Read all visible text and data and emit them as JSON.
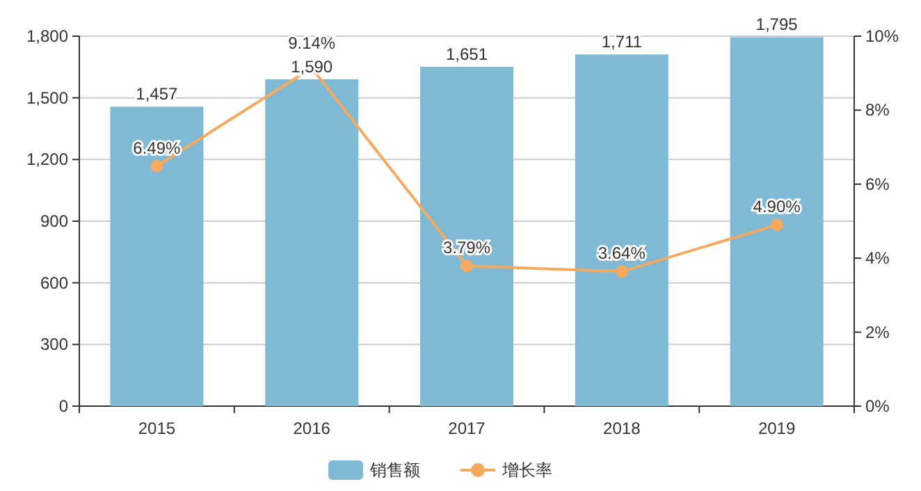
{
  "chart_data": {
    "type": "bar",
    "categories": [
      "2015",
      "2016",
      "2017",
      "2018",
      "2019"
    ],
    "series": [
      {
        "name": "销售额",
        "color": "#7fb9d4",
        "values": [
          1457,
          1590,
          1651,
          1711,
          1795
        ],
        "value_labels": [
          "1,457",
          "1,590",
          "1,651",
          "1,711",
          "1,795"
        ]
      },
      {
        "name": "增长率",
        "type": "line",
        "axis": "y2",
        "color": "#f5aa5f",
        "marker": "circle",
        "values": [
          6.49,
          9.14,
          3.79,
          3.64,
          4.9
        ],
        "value_labels": [
          "6.49%",
          "9.14%",
          "3.79%",
          "3.64%",
          "4.90%"
        ]
      }
    ],
    "ylim": [
      0,
      1800
    ],
    "yticks": [
      0,
      300,
      600,
      900,
      {
        "value": 1200,
        "label": "1,200"
      },
      {
        "value": 1500,
        "label": "1,500"
      },
      {
        "value": 1800,
        "label": "1,800"
      }
    ],
    "y2lim": [
      0,
      10
    ],
    "y2ticks": [
      {
        "value": 0,
        "label": "0%"
      },
      {
        "value": 2,
        "label": "2%"
      },
      {
        "value": 4,
        "label": "4%"
      },
      {
        "value": 6,
        "label": "6%"
      },
      {
        "value": 8,
        "label": "8%"
      },
      {
        "value": 10,
        "label": "10%"
      }
    ],
    "grid": "y",
    "legend": "bottom"
  }
}
